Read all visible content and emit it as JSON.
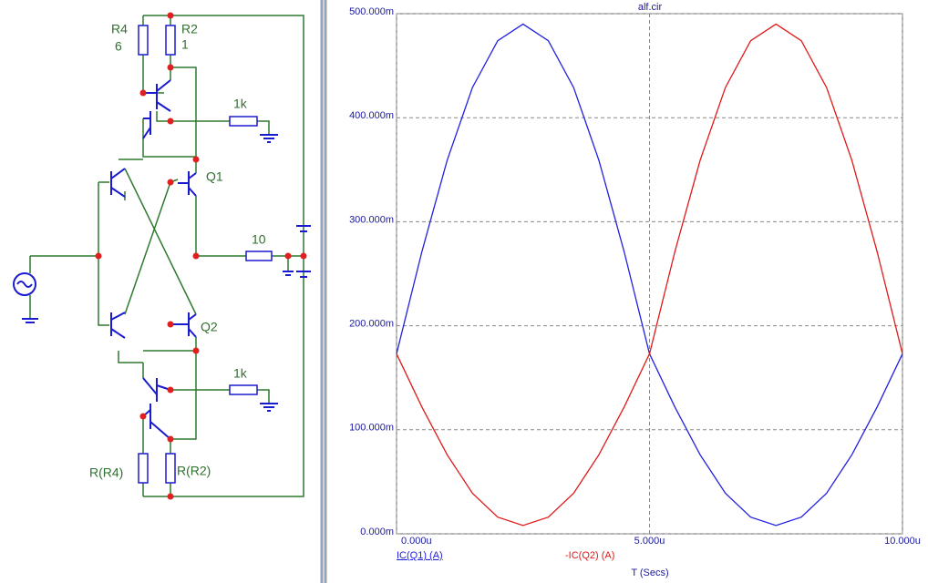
{
  "schematic": {
    "labels": [
      "R4",
      "6",
      "R2",
      "1",
      "1k",
      "Q1",
      "10",
      "Q2",
      "1k",
      "R(R4)",
      "R(R2)"
    ]
  },
  "chart_data": {
    "type": "line",
    "title": "alf.cir",
    "x_label": "T (Secs)",
    "x": [
      0,
      5e-07,
      1e-06,
      1.5e-06,
      2e-06,
      2.5e-06,
      3e-06,
      3.5e-06,
      4e-06,
      4.5e-06,
      5e-06,
      5.5e-06,
      6e-06,
      6.5e-06,
      7e-06,
      7.5e-06,
      8e-06,
      8.5e-06,
      9e-06,
      9.5e-06,
      1e-05
    ],
    "series": [
      {
        "name": "IC(Q1) (A)",
        "color": "#2020e0",
        "values": [
          0.173,
          0.271,
          0.359,
          0.429,
          0.474,
          0.49,
          0.474,
          0.429,
          0.359,
          0.271,
          0.173,
          0.122,
          0.076,
          0.039,
          0.016,
          0.008,
          0.016,
          0.039,
          0.076,
          0.122,
          0.173
        ]
      },
      {
        "name": "-IC(Q2) (A)",
        "color": "#e01818",
        "values": [
          0.173,
          0.122,
          0.076,
          0.039,
          0.016,
          0.008,
          0.016,
          0.039,
          0.076,
          0.122,
          0.173,
          0.271,
          0.359,
          0.429,
          0.474,
          0.49,
          0.474,
          0.429,
          0.359,
          0.271,
          0.173
        ]
      }
    ],
    "xlim": [
      0,
      1e-05
    ],
    "xticks": [
      {
        "value": 0,
        "label": "0.000u"
      },
      {
        "value": 5e-06,
        "label": "5.000u"
      },
      {
        "value": 1e-05,
        "label": "10.000u"
      }
    ],
    "ylim": [
      0,
      0.5
    ],
    "yticks": [
      {
        "value": 0,
        "label": "0.000m"
      },
      {
        "value": 0.1,
        "label": "100.000m"
      },
      {
        "value": 0.2,
        "label": "200.000m"
      },
      {
        "value": 0.3,
        "label": "300.000m"
      },
      {
        "value": 0.4,
        "label": "400.000m"
      },
      {
        "value": 0.5,
        "label": "500.000m"
      }
    ],
    "grid": true,
    "legend": "bottom"
  }
}
